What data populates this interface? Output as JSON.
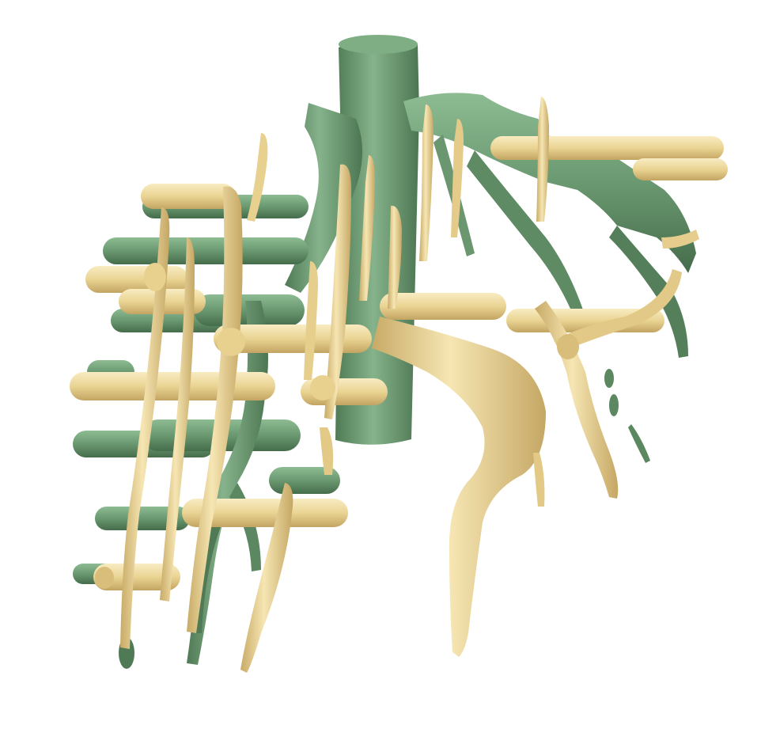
{
  "scene": {
    "description_free": true,
    "colors": {
      "background": "#ffffff",
      "green_fill": "#6e9c74",
      "green_dark": "#47704d",
      "green_light": "#96c19a",
      "tan_fill": "#ecd79c",
      "tan_dark": "#b99a55",
      "tan_light": "#f7ebbf"
    },
    "groups": [
      {
        "name": "green-structure",
        "color_key": "green"
      },
      {
        "name": "tan-structure",
        "color_key": "tan"
      }
    ]
  }
}
